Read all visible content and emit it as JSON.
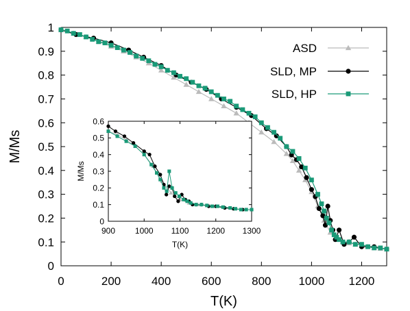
{
  "chart_data": [
    {
      "type": "line",
      "title": "",
      "xlabel": "T(K)",
      "ylabel": "M/Ms",
      "xlim": [
        0,
        1300
      ],
      "ylim": [
        0,
        1
      ],
      "xticks": [
        0,
        200,
        400,
        600,
        800,
        1000,
        1200
      ],
      "yticks": [
        0,
        0.1,
        0.2,
        0.3,
        0.4,
        0.5,
        0.6,
        0.7,
        0.8,
        0.9,
        1
      ],
      "xtick_labels": [
        "0",
        "200",
        "400",
        "600",
        "800",
        "1000",
        "1200"
      ],
      "ytick_labels": [
        "0",
        "0.1",
        "0.2",
        "0.3",
        "0.4",
        "0.5",
        "0.6",
        "0.7",
        "0.8",
        "0.9",
        "1"
      ],
      "grid": false,
      "legend_position": "top-right",
      "series": [
        {
          "name": "ASD",
          "color": "#bbbbbb",
          "marker": "triangle",
          "x": [
            0,
            50,
            100,
            150,
            200,
            250,
            300,
            350,
            400,
            450,
            500,
            550,
            600,
            650,
            700,
            750,
            800,
            850,
            900,
            925,
            950,
            975,
            1000,
            1025,
            1050,
            1075,
            1100,
            1125,
            1150,
            1175,
            1200,
            1225,
            1250,
            1275,
            1300
          ],
          "y": [
            0.99,
            0.975,
            0.96,
            0.94,
            0.92,
            0.9,
            0.875,
            0.85,
            0.82,
            0.79,
            0.76,
            0.73,
            0.7,
            0.67,
            0.64,
            0.6,
            0.56,
            0.52,
            0.47,
            0.44,
            0.4,
            0.36,
            0.31,
            0.25,
            0.19,
            0.14,
            0.11,
            0.1,
            0.095,
            0.09,
            0.085,
            0.08,
            0.075,
            0.072,
            0.07
          ]
        },
        {
          "name": "SLD, MP",
          "color": "#000000",
          "marker": "circle",
          "x": [
            0,
            60,
            130,
            200,
            270,
            330,
            400,
            460,
            520,
            580,
            640,
            700,
            760,
            820,
            860,
            900,
            920,
            940,
            960,
            980,
            1000,
            1015,
            1030,
            1045,
            1055,
            1065,
            1075,
            1085,
            1095,
            1110,
            1130,
            1150,
            1170,
            1200,
            1250,
            1300
          ],
          "y": [
            0.99,
            0.97,
            0.955,
            0.935,
            0.905,
            0.875,
            0.84,
            0.8,
            0.77,
            0.74,
            0.7,
            0.665,
            0.63,
            0.575,
            0.545,
            0.5,
            0.465,
            0.445,
            0.415,
            0.37,
            0.32,
            0.29,
            0.24,
            0.21,
            0.17,
            0.25,
            0.19,
            0.15,
            0.11,
            0.15,
            0.09,
            0.1,
            0.12,
            0.08,
            0.08,
            0.07
          ]
        },
        {
          "name": "SLD, HP",
          "color": "#1a9a78",
          "marker": "square",
          "x": [
            0,
            25,
            50,
            75,
            100,
            125,
            150,
            175,
            200,
            225,
            250,
            275,
            300,
            325,
            350,
            375,
            400,
            425,
            450,
            475,
            500,
            525,
            550,
            575,
            600,
            625,
            650,
            675,
            700,
            725,
            750,
            775,
            800,
            825,
            850,
            875,
            900,
            925,
            950,
            975,
            1000,
            1025,
            1040,
            1050,
            1060,
            1070,
            1080,
            1090,
            1100,
            1110,
            1125,
            1150,
            1175,
            1200,
            1225,
            1250,
            1275,
            1300
          ],
          "y": [
            0.99,
            0.985,
            0.975,
            0.97,
            0.96,
            0.95,
            0.94,
            0.935,
            0.925,
            0.915,
            0.905,
            0.895,
            0.88,
            0.87,
            0.86,
            0.845,
            0.835,
            0.82,
            0.81,
            0.795,
            0.785,
            0.77,
            0.755,
            0.745,
            0.73,
            0.715,
            0.7,
            0.69,
            0.67,
            0.655,
            0.64,
            0.625,
            0.6,
            0.58,
            0.56,
            0.535,
            0.5,
            0.48,
            0.45,
            0.41,
            0.36,
            0.3,
            0.26,
            0.23,
            0.2,
            0.18,
            0.15,
            0.13,
            0.12,
            0.11,
            0.1,
            0.1,
            0.09,
            0.09,
            0.08,
            0.075,
            0.075,
            0.07
          ]
        }
      ]
    },
    {
      "type": "line",
      "title": "",
      "xlabel": "T(K)",
      "ylabel": "M/Ms",
      "xlim": [
        900,
        1300
      ],
      "ylim": [
        0,
        0.6
      ],
      "xticks": [
        900,
        1000,
        1100,
        1200,
        1300
      ],
      "yticks": [
        0,
        0.1,
        0.2,
        0.3,
        0.4,
        0.5,
        0.6
      ],
      "xtick_labels": [
        "900",
        "1000",
        "1100",
        "1200",
        "1300"
      ],
      "ytick_labels": [
        "0",
        "0.1",
        "0.2",
        "0.3",
        "0.4",
        "0.5",
        "0.6"
      ],
      "grid": false,
      "series": [
        {
          "name": "ASD",
          "color": "#bbbbbb",
          "marker": "triangle",
          "x": [
            900,
            925,
            950,
            975,
            1000,
            1025,
            1050,
            1075,
            1100,
            1125,
            1150,
            1175,
            1200,
            1225,
            1250,
            1275,
            1300
          ],
          "y": [
            0.54,
            0.52,
            0.49,
            0.45,
            0.4,
            0.33,
            0.24,
            0.17,
            0.13,
            0.11,
            0.1,
            0.095,
            0.09,
            0.085,
            0.075,
            0.07,
            0.07
          ]
        },
        {
          "name": "SLD, MP",
          "color": "#000000",
          "marker": "circle",
          "x": [
            900,
            920,
            945,
            970,
            1000,
            1015,
            1030,
            1045,
            1055,
            1062,
            1070,
            1078,
            1085,
            1095,
            1105,
            1115,
            1125,
            1135,
            1145,
            1160,
            1180,
            1200,
            1225,
            1250,
            1275,
            1300
          ],
          "y": [
            0.57,
            0.54,
            0.51,
            0.47,
            0.42,
            0.4,
            0.33,
            0.28,
            0.22,
            0.16,
            0.21,
            0.2,
            0.15,
            0.12,
            0.16,
            0.13,
            0.12,
            0.1,
            0.1,
            0.1,
            0.09,
            0.09,
            0.08,
            0.075,
            0.07,
            0.07
          ]
        },
        {
          "name": "SLD, HP",
          "color": "#1a9a78",
          "marker": "square",
          "x": [
            900,
            925,
            950,
            975,
            1000,
            1020,
            1035,
            1045,
            1055,
            1063,
            1070,
            1078,
            1088,
            1098,
            1110,
            1120,
            1130,
            1145,
            1160,
            1175,
            1190,
            1205,
            1220,
            1240,
            1255,
            1270,
            1285,
            1300
          ],
          "y": [
            0.54,
            0.51,
            0.48,
            0.45,
            0.4,
            0.34,
            0.29,
            0.25,
            0.2,
            0.18,
            0.3,
            0.2,
            0.17,
            0.15,
            0.13,
            0.12,
            0.11,
            0.1,
            0.1,
            0.095,
            0.09,
            0.09,
            0.085,
            0.08,
            0.075,
            0.07,
            0.07,
            0.07
          ]
        }
      ]
    }
  ]
}
